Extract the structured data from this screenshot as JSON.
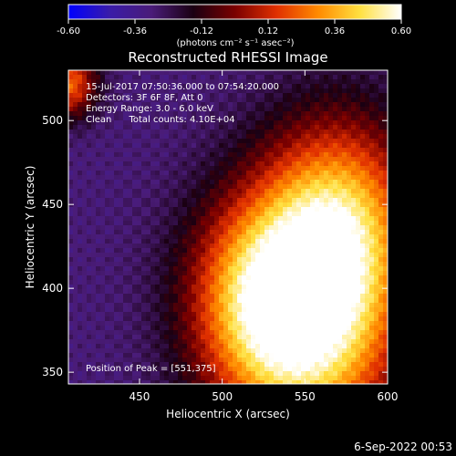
{
  "chart_data": {
    "type": "heatmap",
    "title": "Reconstructed RHESSI Image",
    "xlabel": "Heliocentric X (arcsec)",
    "ylabel": "Heliocentric Y (arcsec)",
    "xlim": [
      407,
      600
    ],
    "ylim": [
      343,
      530
    ],
    "x_ticks": [
      450,
      500,
      550,
      600
    ],
    "y_ticks": [
      350,
      400,
      450,
      500
    ],
    "colorbar": {
      "range": [
        -0.6,
        0.6
      ],
      "ticks": [
        "-0.60",
        "-0.36",
        "-0.12",
        "0.12",
        "0.36",
        "0.60"
      ],
      "units": "(photons cm⁻² s⁻¹ asec⁻²)",
      "colormap": [
        "#0000ff",
        "#3a1ca8",
        "#4a1c78",
        "#1a0012",
        "#7a0000",
        "#e03000",
        "#ff8a00",
        "#ffe040",
        "#ffffff"
      ]
    },
    "annotations": [
      "15-Jul-2017 07:50:36.000 to 07:54:20.000",
      "Detectors: 3F 6F 8F, Att 0",
      "Energy Range: 3.0 - 6.0 keV",
      "Clean      Total counts: 4.10E+04"
    ],
    "peak_label": "Position of Peak = [551,375]",
    "peak": [
      551,
      375
    ],
    "sources": [
      {
        "x": 552,
        "y": 378,
        "amp": 0.58,
        "sx": 38,
        "sy": 55
      },
      {
        "x": 572,
        "y": 440,
        "amp": 0.38,
        "sx": 32,
        "sy": 45
      },
      {
        "x": 520,
        "y": 395,
        "amp": 0.25,
        "sx": 30,
        "sy": 40
      },
      {
        "x": 407,
        "y": 522,
        "amp": 0.35,
        "sx": 12,
        "sy": 14
      }
    ],
    "background_level": -0.3,
    "footer": "6-Sep-2022 00:53"
  }
}
